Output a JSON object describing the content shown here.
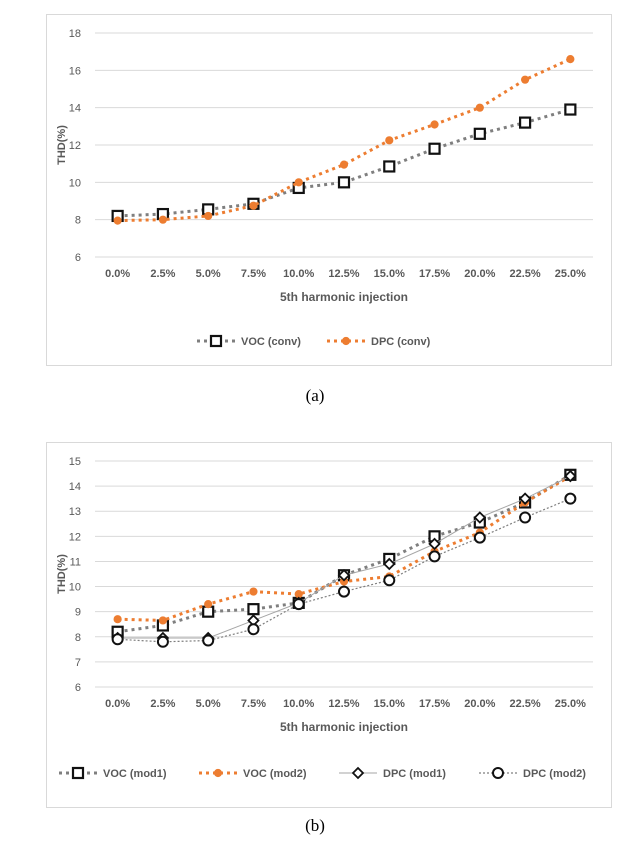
{
  "figures": [
    {
      "caption": "(a)"
    },
    {
      "caption": "(b)"
    }
  ],
  "chart_data": [
    {
      "type": "line",
      "title": "",
      "xlabel": "5th harmonic injection",
      "ylabel": "THD(%)",
      "categories": [
        "0.0%",
        "2.5%",
        "5.0%",
        "7.5%",
        "10.0%",
        "12.5%",
        "15.0%",
        "17.5%",
        "20.0%",
        "22.5%",
        "25.0%"
      ],
      "ylim": [
        6,
        18
      ],
      "yticks": [
        6,
        8,
        10,
        12,
        14,
        16,
        18
      ],
      "grid": true,
      "legend_position": "bottom",
      "series": [
        {
          "name": "VOC (conv)",
          "color": "#7f7f7f",
          "marker": "open-square",
          "line": "dotted",
          "values": [
            8.2,
            8.3,
            8.55,
            8.85,
            9.7,
            10.0,
            10.85,
            11.8,
            12.6,
            13.2,
            13.9
          ]
        },
        {
          "name": "DPC (conv)",
          "color": "#ed7d31",
          "marker": "dot",
          "line": "dotted",
          "values": [
            7.95,
            8.0,
            8.2,
            8.75,
            10.0,
            10.95,
            12.25,
            13.1,
            14.0,
            15.5,
            16.6
          ]
        }
      ]
    },
    {
      "type": "line",
      "title": "",
      "xlabel": "5th harmonic injection",
      "ylabel": "THD(%)",
      "categories": [
        "0.0%",
        "2.5%",
        "5.0%",
        "7.5%",
        "10.0%",
        "12.5%",
        "15.0%",
        "17.5%",
        "20.0%",
        "22.5%",
        "25.0%"
      ],
      "ylim": [
        6,
        15
      ],
      "yticks": [
        6,
        7,
        8,
        9,
        10,
        11,
        12,
        13,
        14,
        15
      ],
      "grid": true,
      "legend_position": "bottom",
      "series": [
        {
          "name": "VOC (mod1)",
          "color": "#7f7f7f",
          "marker": "open-square",
          "line": "dotted",
          "values": [
            8.2,
            8.45,
            9.0,
            9.1,
            9.35,
            10.45,
            11.1,
            12.0,
            12.55,
            13.35,
            14.45
          ]
        },
        {
          "name": "VOC (mod2)",
          "color": "#ed7d31",
          "marker": "dot",
          "line": "dotted",
          "values": [
            8.7,
            8.65,
            9.3,
            9.8,
            9.7,
            10.2,
            10.4,
            11.4,
            12.15,
            13.35,
            14.4
          ]
        },
        {
          "name": "DPC (mod1)",
          "color": "#a6a6a6",
          "marker": "diamond",
          "line": "solid-thin",
          "values": [
            7.95,
            7.95,
            7.95,
            8.65,
            9.35,
            10.45,
            10.9,
            11.7,
            12.75,
            13.5,
            14.4
          ]
        },
        {
          "name": "DPC (mod2)",
          "color": "#7f7f7f",
          "marker": "open-circle",
          "line": "dotted-thin",
          "values": [
            7.9,
            7.8,
            7.85,
            8.3,
            9.3,
            9.8,
            10.25,
            11.2,
            11.95,
            12.75,
            13.5
          ]
        }
      ]
    }
  ]
}
